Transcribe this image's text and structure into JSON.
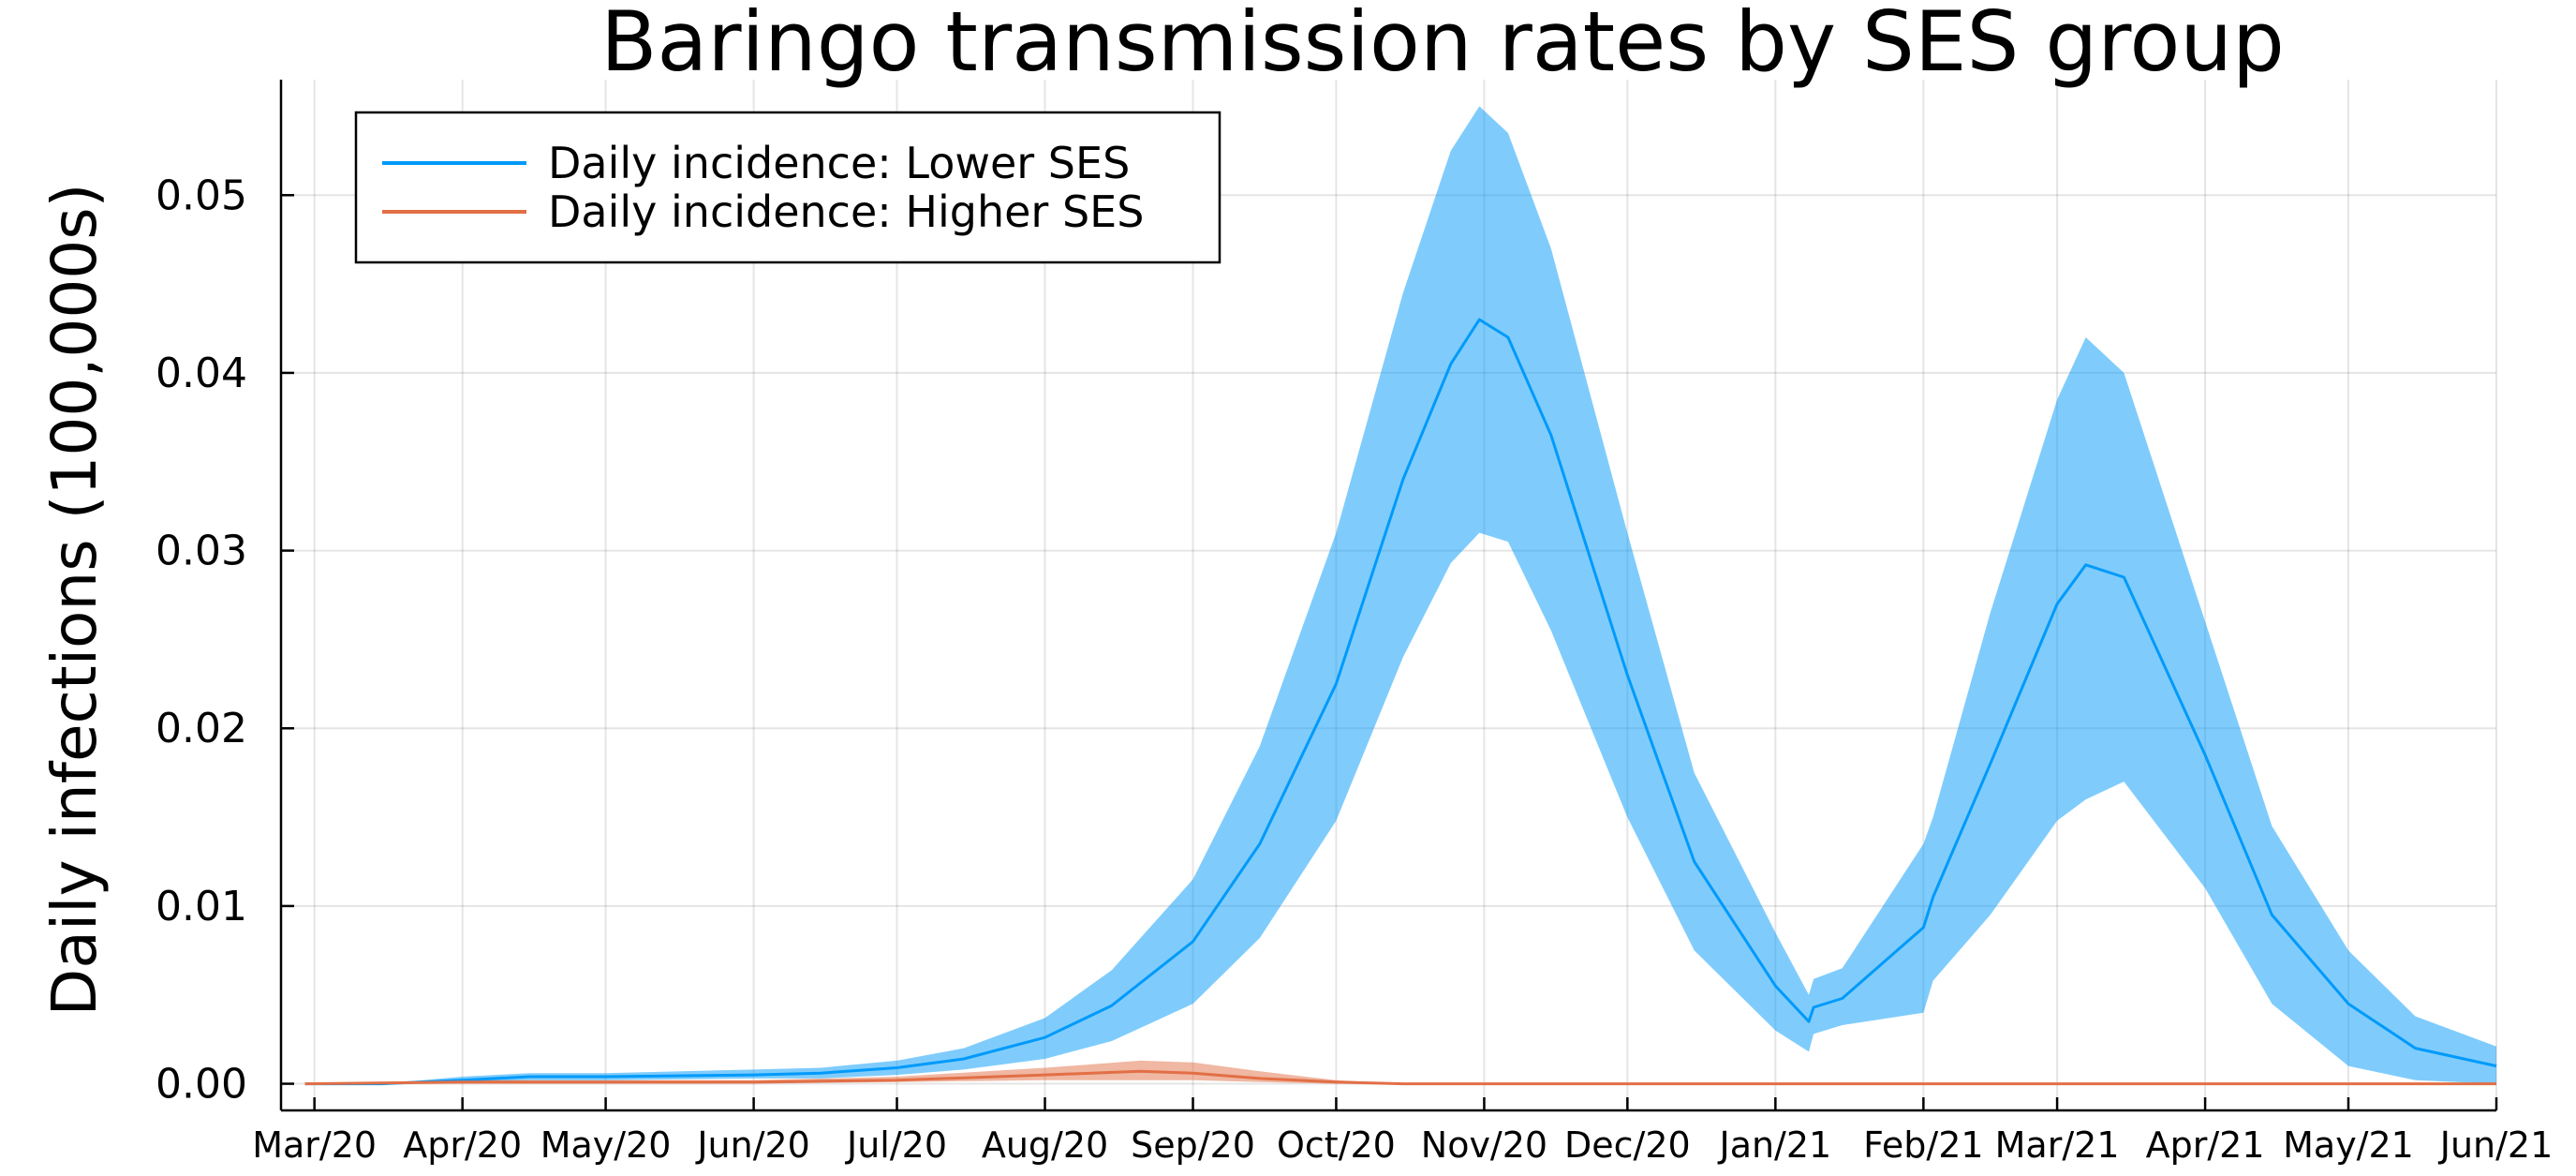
{
  "chart_data": {
    "type": "line",
    "title": "Baringo transmission rates by SES group",
    "xlabel": "",
    "ylabel": "Daily infections (100,000s)",
    "x_range": [
      "2020-02-23",
      "2021-06-01"
    ],
    "ylim": [
      -0.0015,
      0.0565
    ],
    "yticks": [
      0.0,
      0.01,
      0.02,
      0.03,
      0.04,
      0.05
    ],
    "ytick_labels": [
      "0.00",
      "0.01",
      "0.02",
      "0.03",
      "0.04",
      "0.05"
    ],
    "xticks": [
      "2020-03-01",
      "2020-04-01",
      "2020-05-01",
      "2020-06-01",
      "2020-07-01",
      "2020-08-01",
      "2020-09-01",
      "2020-10-01",
      "2020-11-01",
      "2020-12-01",
      "2021-01-01",
      "2021-02-01",
      "2021-03-01",
      "2021-04-01",
      "2021-05-01",
      "2021-06-01"
    ],
    "xtick_labels": [
      "Mar/20",
      "Apr/20",
      "May/20",
      "Jun/20",
      "Jul/20",
      "Aug/20",
      "Sep/20",
      "Oct/20",
      "Nov/20",
      "Dec/20",
      "Jan/21",
      "Feb/21",
      "Mar/21",
      "Apr/21",
      "May/21",
      "Jun/21"
    ],
    "grid": true,
    "legend_position": "top-left",
    "series": [
      {
        "name": "Daily incidence: Lower SES",
        "color": "#009AFA",
        "band_color": "#009AFA",
        "band_opacity": 0.5,
        "points": [
          {
            "x": "2020-02-28",
            "y": 0.0,
            "lo": 0.0,
            "hi": 0.0
          },
          {
            "x": "2020-03-15",
            "y": 0.0,
            "lo": 0.0,
            "hi": 0.0
          },
          {
            "x": "2020-04-01",
            "y": 0.0002,
            "lo": 0.0001,
            "hi": 0.0004
          },
          {
            "x": "2020-04-15",
            "y": 0.0004,
            "lo": 0.0002,
            "hi": 0.0006
          },
          {
            "x": "2020-05-01",
            "y": 0.0004,
            "lo": 0.0002,
            "hi": 0.0006
          },
          {
            "x": "2020-06-01",
            "y": 0.0005,
            "lo": 0.0003,
            "hi": 0.0008
          },
          {
            "x": "2020-06-15",
            "y": 0.0006,
            "lo": 0.0003,
            "hi": 0.0009
          },
          {
            "x": "2020-07-01",
            "y": 0.0009,
            "lo": 0.0005,
            "hi": 0.0013
          },
          {
            "x": "2020-07-15",
            "y": 0.0014,
            "lo": 0.0008,
            "hi": 0.002
          },
          {
            "x": "2020-08-01",
            "y": 0.0026,
            "lo": 0.0014,
            "hi": 0.0037
          },
          {
            "x": "2020-08-15",
            "y": 0.0044,
            "lo": 0.0024,
            "hi": 0.0064
          },
          {
            "x": "2020-09-01",
            "y": 0.008,
            "lo": 0.0045,
            "hi": 0.0115
          },
          {
            "x": "2020-09-15",
            "y": 0.0135,
            "lo": 0.0082,
            "hi": 0.019
          },
          {
            "x": "2020-10-01",
            "y": 0.0225,
            "lo": 0.0148,
            "hi": 0.031
          },
          {
            "x": "2020-10-15",
            "y": 0.034,
            "lo": 0.024,
            "hi": 0.0445
          },
          {
            "x": "2020-10-25",
            "y": 0.0405,
            "lo": 0.0293,
            "hi": 0.0525
          },
          {
            "x": "2020-10-31",
            "y": 0.043,
            "lo": 0.031,
            "hi": 0.055
          },
          {
            "x": "2020-11-06",
            "y": 0.042,
            "lo": 0.0305,
            "hi": 0.0535
          },
          {
            "x": "2020-11-15",
            "y": 0.0365,
            "lo": 0.0255,
            "hi": 0.047
          },
          {
            "x": "2020-12-01",
            "y": 0.023,
            "lo": 0.015,
            "hi": 0.031
          },
          {
            "x": "2020-12-15",
            "y": 0.0125,
            "lo": 0.0075,
            "hi": 0.0175
          },
          {
            "x": "2021-01-01",
            "y": 0.0055,
            "lo": 0.003,
            "hi": 0.0085
          },
          {
            "x": "2021-01-08",
            "y": 0.0035,
            "lo": 0.0018,
            "hi": 0.005
          },
          {
            "x": "2021-01-09",
            "y": 0.0043,
            "lo": 0.0028,
            "hi": 0.0059
          },
          {
            "x": "2021-01-15",
            "y": 0.0048,
            "lo": 0.0033,
            "hi": 0.0065
          },
          {
            "x": "2021-02-01",
            "y": 0.0088,
            "lo": 0.004,
            "hi": 0.0135
          },
          {
            "x": "2021-02-03",
            "y": 0.0105,
            "lo": 0.0058,
            "hi": 0.015
          },
          {
            "x": "2021-02-15",
            "y": 0.018,
            "lo": 0.0095,
            "hi": 0.0265
          },
          {
            "x": "2021-03-01",
            "y": 0.027,
            "lo": 0.0148,
            "hi": 0.0385
          },
          {
            "x": "2021-03-07",
            "y": 0.0292,
            "lo": 0.016,
            "hi": 0.042
          },
          {
            "x": "2021-03-15",
            "y": 0.0285,
            "lo": 0.017,
            "hi": 0.04
          },
          {
            "x": "2021-04-01",
            "y": 0.0185,
            "lo": 0.011,
            "hi": 0.026
          },
          {
            "x": "2021-04-15",
            "y": 0.0095,
            "lo": 0.0045,
            "hi": 0.0145
          },
          {
            "x": "2021-05-01",
            "y": 0.0045,
            "lo": 0.001,
            "hi": 0.0075
          },
          {
            "x": "2021-05-15",
            "y": 0.002,
            "lo": 0.0002,
            "hi": 0.0038
          },
          {
            "x": "2021-06-01",
            "y": 0.001,
            "lo": 0.0,
            "hi": 0.0021
          }
        ]
      },
      {
        "name": "Daily incidence: Higher SES",
        "color": "#E26F46",
        "band_color": "#E26F46",
        "band_opacity": 0.5,
        "points": [
          {
            "x": "2020-02-28",
            "y": 0.0,
            "lo": 0.0,
            "hi": 0.0
          },
          {
            "x": "2020-04-01",
            "y": 0.0001,
            "lo": 0.0,
            "hi": 0.0002
          },
          {
            "x": "2020-05-01",
            "y": 0.0001,
            "lo": 0.0,
            "hi": 0.0002
          },
          {
            "x": "2020-06-01",
            "y": 0.0001,
            "lo": 0.0,
            "hi": 0.0002
          },
          {
            "x": "2020-07-01",
            "y": 0.0002,
            "lo": 0.0001,
            "hi": 0.0004
          },
          {
            "x": "2020-08-01",
            "y": 0.0005,
            "lo": 0.0002,
            "hi": 0.0009
          },
          {
            "x": "2020-08-21",
            "y": 0.0007,
            "lo": 0.0002,
            "hi": 0.0013
          },
          {
            "x": "2020-09-01",
            "y": 0.0006,
            "lo": 0.0002,
            "hi": 0.0012
          },
          {
            "x": "2020-09-15",
            "y": 0.0003,
            "lo": 0.0001,
            "hi": 0.0007
          },
          {
            "x": "2020-10-01",
            "y": 0.0001,
            "lo": 0.0,
            "hi": 0.0002
          },
          {
            "x": "2020-10-15",
            "y": 0.0,
            "lo": 0.0,
            "hi": 0.0
          },
          {
            "x": "2021-06-01",
            "y": 0.0,
            "lo": 0.0,
            "hi": 0.0
          }
        ]
      }
    ]
  }
}
